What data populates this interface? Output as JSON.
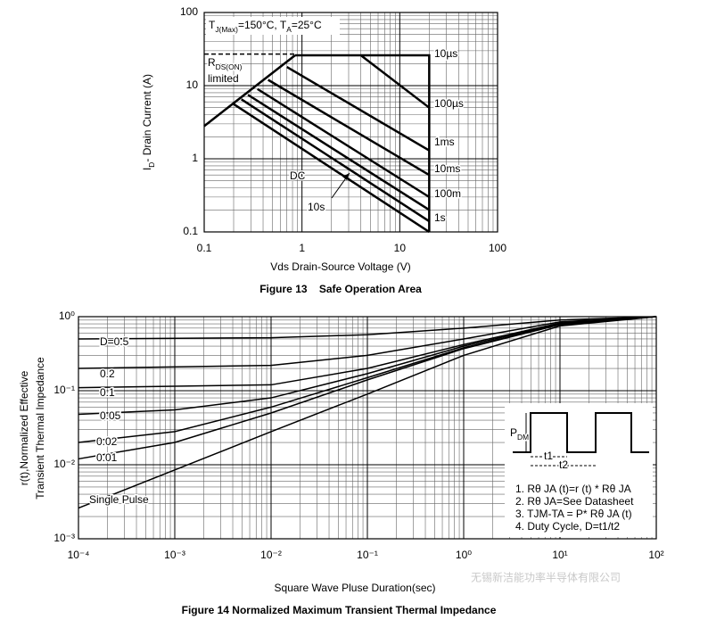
{
  "chart_data": [
    {
      "type": "line",
      "caption": "Figure 13    Safe Operation Area",
      "x_label": "Vds Drain-Source Voltage (V)",
      "y_label": [
        {
          "text": "I"
        },
        {
          "text": "D",
          "sub": true
        },
        {
          "text": "- Drain Current (A)"
        }
      ],
      "annotations": [
        [
          {
            "text": "T"
          },
          {
            "text": "J(Max)",
            "sub": true
          },
          {
            "text": "=150°C, T"
          },
          {
            "text": "A",
            "sub": true
          },
          {
            "text": "=25°C"
          }
        ],
        [
          {
            "text": "R"
          },
          {
            "text": "DS(ON)",
            "sub": true
          }
        ],
        [
          {
            "text": "limited"
          }
        ]
      ],
      "log_x": true,
      "log_y": true,
      "xlim": [
        0.1,
        100
      ],
      "ylim": [
        0.1,
        100
      ],
      "xticks": [
        0.1,
        1,
        10,
        100
      ],
      "yticks": [
        0.1,
        1,
        10,
        100
      ],
      "grid": true,
      "minor_grid": true,
      "rds_on_limit": {
        "x": [
          0.1,
          0.85
        ],
        "values": [
          2.8,
          26
        ],
        "dashed_x": [
          0.1,
          0.85
        ],
        "dashed_values": [
          27,
          27
        ]
      },
      "series": [
        {
          "name": "10µs",
          "color": "#000000",
          "x": [
            0.85,
            20,
            20
          ],
          "values": [
            26,
            26,
            0.1
          ]
        },
        {
          "name": "100µs",
          "color": "#000000",
          "x": [
            4,
            20
          ],
          "values": [
            26,
            5
          ]
        },
        {
          "name": "1ms",
          "color": "#000000",
          "x": [
            0.7,
            20
          ],
          "values": [
            18,
            1.3
          ]
        },
        {
          "name": "10ms",
          "color": "#000000",
          "x": [
            0.45,
            20
          ],
          "values": [
            12,
            0.6
          ]
        },
        {
          "name": "100m",
          "color": "#000000",
          "x": [
            0.35,
            20
          ],
          "values": [
            9,
            0.3
          ]
        },
        {
          "name": "1s",
          "color": "#000000",
          "x": [
            0.28,
            20
          ],
          "values": [
            7.5,
            0.2
          ]
        },
        {
          "name": "10s",
          "color": "#000000",
          "x": [
            0.24,
            20
          ],
          "values": [
            6.5,
            0.14
          ]
        },
        {
          "name": "DC",
          "color": "#000000",
          "x": [
            0.2,
            20
          ],
          "values": [
            5.6,
            0.1
          ]
        }
      ]
    },
    {
      "type": "line",
      "caption": "Figure 14 Normalized Maximum Transient Thermal Impedance",
      "x_label": "Square Wave Pluse Duration(sec)",
      "y_label": [
        "r(t),Normalized Effective",
        "Transient Thermal Impedance"
      ],
      "log_x": true,
      "log_y": true,
      "xlim": [
        0.0001,
        100
      ],
      "ylim": [
        0.001,
        1
      ],
      "xticks": [
        {
          "value": 0.0001,
          "label": "10⁻⁴"
        },
        {
          "value": 0.001,
          "label": "10⁻³"
        },
        {
          "value": 0.01,
          "label": "10⁻²"
        },
        {
          "value": 0.1,
          "label": "10⁻¹"
        },
        {
          "value": 1,
          "label": "10⁰"
        },
        {
          "value": 10,
          "label": "10¹"
        },
        {
          "value": 100,
          "label": "10²"
        }
      ],
      "yticks": [
        {
          "value": 0.001,
          "label": "10⁻³"
        },
        {
          "value": 0.01,
          "label": "10⁻²"
        },
        {
          "value": 0.1,
          "label": "10⁻¹"
        },
        {
          "value": 1,
          "label": "10⁰"
        }
      ],
      "grid": true,
      "minor_grid": true,
      "series": [
        {
          "name": "D=0.5",
          "color": "#000000",
          "x": [
            0.0001,
            0.01,
            0.1,
            1,
            10,
            100
          ],
          "values": [
            0.5,
            0.52,
            0.57,
            0.7,
            0.9,
            1
          ]
        },
        {
          "name": "0.2",
          "color": "#000000",
          "x": [
            0.0001,
            0.01,
            0.1,
            1,
            10,
            100
          ],
          "values": [
            0.2,
            0.22,
            0.3,
            0.5,
            0.85,
            1
          ]
        },
        {
          "name": "0.1",
          "color": "#000000",
          "x": [
            0.0001,
            0.01,
            0.1,
            1,
            10,
            100
          ],
          "values": [
            0.11,
            0.12,
            0.2,
            0.42,
            0.82,
            1
          ]
        },
        {
          "name": "0.05",
          "color": "#000000",
          "x": [
            0.0001,
            0.001,
            0.01,
            0.1,
            1,
            10,
            100
          ],
          "values": [
            0.048,
            0.055,
            0.08,
            0.17,
            0.4,
            0.8,
            1
          ]
        },
        {
          "name": "0.02",
          "color": "#000000",
          "x": [
            0.0001,
            0.001,
            0.01,
            0.1,
            1,
            10,
            100
          ],
          "values": [
            0.02,
            0.028,
            0.06,
            0.15,
            0.38,
            0.78,
            1
          ]
        },
        {
          "name": "0.01",
          "color": "#000000",
          "x": [
            0.0001,
            0.001,
            0.01,
            0.1,
            1,
            10,
            100
          ],
          "values": [
            0.012,
            0.02,
            0.05,
            0.14,
            0.37,
            0.78,
            1
          ]
        },
        {
          "name": "Single Pulse",
          "color": "#000000",
          "x": [
            0.0001,
            0.001,
            0.01,
            0.1,
            1,
            10,
            100
          ],
          "values": [
            0.0026,
            0.0085,
            0.028,
            0.09,
            0.3,
            0.75,
            1
          ]
        }
      ],
      "inset": {
        "pdm": [
          {
            "text": "P"
          },
          {
            "text": "DM",
            "sub": true
          }
        ],
        "t1": "t1",
        "t2": "t2",
        "notes": [
          "1. Rθ JA (t)=r (t) * Rθ JA",
          "2. Rθ JA=See Datasheet",
          "3. TJM-TA = P* Rθ JA (t)",
          "4. Duty Cycle, D=t1/t2"
        ]
      }
    }
  ],
  "watermark": "无锡新洁能功率半导体有限公司"
}
